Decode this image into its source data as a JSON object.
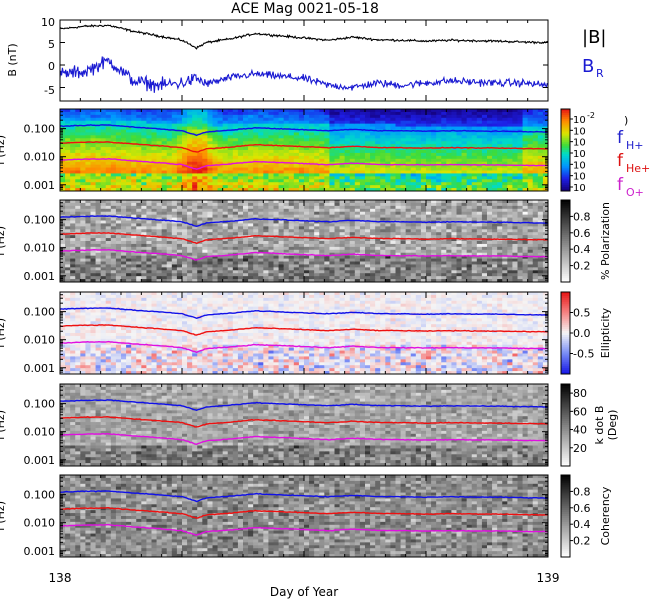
{
  "title": "ACE Mag 0021-05-18",
  "x_axis": {
    "label": "Day of Year",
    "min": 138,
    "max": 139,
    "tick_labels": [
      "138",
      "139"
    ]
  },
  "legend_mag": {
    "total": {
      "label": "|B|",
      "color": "#000000"
    },
    "radial": {
      "label_main": "B",
      "label_sub": "R",
      "color": "#1a1ad2"
    }
  },
  "legend_freq": [
    {
      "main": "f",
      "sub": "H+",
      "color": "#2222cc"
    },
    {
      "main": "f",
      "sub": "He+",
      "color": "#dd1111"
    },
    {
      "main": "f",
      "sub": "O+",
      "color": "#cc22cc"
    }
  ],
  "colors": {
    "h_plus": "#1010e8",
    "he_plus": "#ee1010",
    "o_plus": "#e010e0",
    "total_b": "#000000",
    "radial_b": "#1a1ad2"
  },
  "chart_data": [
    {
      "type": "line",
      "panel": "magnetic-field",
      "ylabel": "B (nT)",
      "ylim": [
        -8,
        10
      ],
      "y_ticks": [
        "-5",
        "0",
        "5",
        "10"
      ],
      "series": [
        {
          "name": "|B|",
          "x": [
            138.0,
            138.05,
            138.1,
            138.15,
            138.2,
            138.25,
            138.28,
            138.3,
            138.35,
            138.4,
            138.45,
            138.5,
            138.55,
            138.6,
            138.65,
            138.7,
            138.75,
            138.8,
            138.85,
            138.9,
            138.95,
            139.0
          ],
          "values": [
            8.0,
            8.6,
            8.8,
            7.5,
            6.5,
            5.5,
            3.8,
            5.0,
            5.8,
            7.0,
            6.5,
            6.0,
            5.5,
            6.2,
            5.6,
            5.5,
            5.3,
            5.5,
            5.4,
            5.3,
            5.1,
            5.0
          ]
        },
        {
          "name": "B_R",
          "x": [
            138.0,
            138.05,
            138.1,
            138.15,
            138.2,
            138.25,
            138.28,
            138.3,
            138.35,
            138.4,
            138.45,
            138.5,
            138.55,
            138.6,
            138.65,
            138.7,
            138.75,
            138.8,
            138.85,
            138.9,
            138.95,
            139.0
          ],
          "values": [
            -2.0,
            -1.5,
            1.0,
            -3.5,
            -4.5,
            -4.0,
            -3.0,
            -4.2,
            -2.8,
            -2.0,
            -2.5,
            -3.0,
            -4.5,
            -5.0,
            -4.0,
            -4.5,
            -4.0,
            -3.5,
            -3.8,
            -4.0,
            -4.0,
            -4.5
          ]
        }
      ]
    },
    {
      "type": "heatmap",
      "panel": "power",
      "ylabel": "f (Hz)",
      "y_scale": "log",
      "ylim": [
        0.0006,
        0.5
      ],
      "y_ticks": [
        "0.001",
        "0.010",
        "0.100"
      ],
      "colorbar": {
        "palette": "rainbow",
        "tick_labels": [
          "10",
          "10",
          "10",
          "10",
          "10",
          "10",
          "10"
        ],
        "tick_exps": [
          "-2",
          "",
          "",
          "",
          "",
          "",
          ""
        ]
      }
    },
    {
      "type": "heatmap",
      "panel": "polarization",
      "ylabel": "f (Hz)",
      "y_scale": "log",
      "ylim": [
        0.0006,
        0.5
      ],
      "y_ticks": [
        "0.001",
        "0.010",
        "0.100"
      ],
      "colorbar": {
        "palette": "gray",
        "label": "% Polarization",
        "range": [
          0,
          1
        ],
        "tick_labels": [
          "0.2",
          "0.4",
          "0.6",
          "0.8"
        ]
      }
    },
    {
      "type": "heatmap",
      "panel": "ellipticity",
      "ylabel": "f (Hz)",
      "y_scale": "log",
      "ylim": [
        0.0006,
        0.5
      ],
      "y_ticks": [
        "0.001",
        "0.010",
        "0.100"
      ],
      "colorbar": {
        "palette": "bwr",
        "label": "Ellipticity",
        "range": [
          -1,
          1
        ],
        "tick_labels": [
          "-0.5",
          "0.0",
          "0.5"
        ]
      }
    },
    {
      "type": "heatmap",
      "panel": "k-dot-b",
      "ylabel": "f (Hz)",
      "y_scale": "log",
      "ylim": [
        0.0006,
        0.5
      ],
      "y_ticks": [
        "0.001",
        "0.010",
        "0.100"
      ],
      "colorbar": {
        "palette": "gray",
        "label_line1": "k dot B",
        "label_line2": "(Deg)",
        "range": [
          0,
          90
        ],
        "tick_labels": [
          "20",
          "40",
          "60",
          "80"
        ]
      }
    },
    {
      "type": "heatmap",
      "panel": "coherency",
      "ylabel": "f (Hz)",
      "y_scale": "log",
      "ylim": [
        0.0006,
        0.5
      ],
      "y_ticks": [
        "0.001",
        "0.010",
        "0.100"
      ],
      "colorbar": {
        "palette": "gray",
        "label": "Coherency",
        "range": [
          0,
          1
        ],
        "tick_labels": [
          "0.2",
          "0.4",
          "0.6",
          "0.8"
        ]
      }
    }
  ],
  "gyrofrequency_lines": {
    "x": [
      138.0,
      138.05,
      138.1,
      138.15,
      138.2,
      138.25,
      138.28,
      138.3,
      138.35,
      138.4,
      138.45,
      138.5,
      138.55,
      138.6,
      138.65,
      138.7,
      138.75,
      138.8,
      138.85,
      138.9,
      138.95,
      139.0
    ],
    "f_h_plus": [
      0.122,
      0.131,
      0.134,
      0.114,
      0.099,
      0.084,
      0.058,
      0.076,
      0.088,
      0.107,
      0.099,
      0.091,
      0.084,
      0.094,
      0.085,
      0.084,
      0.081,
      0.084,
      0.082,
      0.081,
      0.078,
      0.076
    ],
    "f_he_plus": [
      0.0305,
      0.0327,
      0.0335,
      0.0285,
      0.0247,
      0.021,
      0.0145,
      0.019,
      0.022,
      0.0267,
      0.0247,
      0.0228,
      0.021,
      0.0235,
      0.0213,
      0.021,
      0.0202,
      0.021,
      0.0205,
      0.0202,
      0.0195,
      0.019
    ],
    "f_o_plus": [
      0.0076,
      0.0082,
      0.0084,
      0.0071,
      0.0062,
      0.0052,
      0.0036,
      0.0048,
      0.0055,
      0.0067,
      0.0062,
      0.0057,
      0.0052,
      0.0059,
      0.0053,
      0.0052,
      0.0051,
      0.0052,
      0.0051,
      0.0051,
      0.0049,
      0.0048
    ]
  }
}
